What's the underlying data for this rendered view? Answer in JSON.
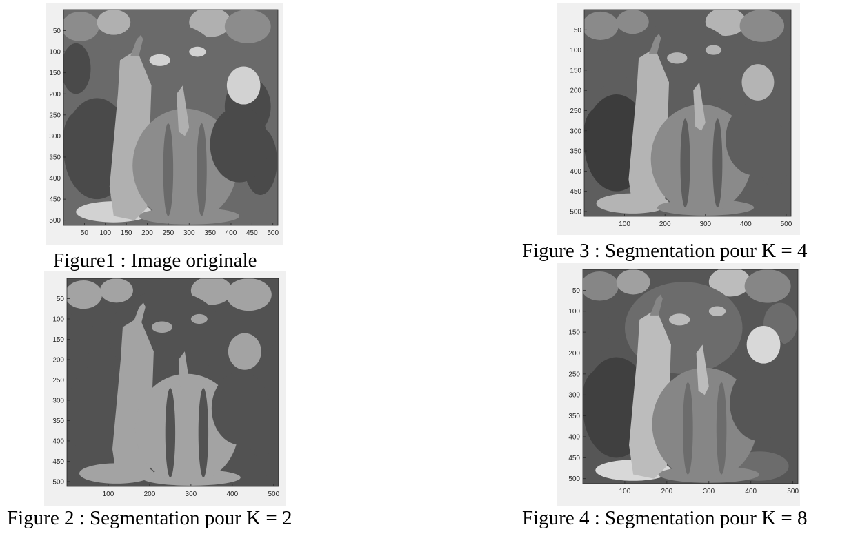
{
  "figures": [
    {
      "id": "fig1",
      "caption": "Figure1 : Image originale",
      "image": "original grayscale peppers image",
      "x_ticks": [
        "50",
        "100",
        "150",
        "200",
        "250",
        "300",
        "350",
        "400",
        "450",
        "500"
      ],
      "y_ticks": [
        "50",
        "100",
        "150",
        "200",
        "250",
        "300",
        "350",
        "400",
        "450",
        "500"
      ]
    },
    {
      "id": "fig2",
      "caption": "Figure 2 : Segmentation pour K = 2",
      "image": "peppers image segmented into 2 gray levels",
      "x_ticks": [
        "100",
        "200",
        "300",
        "400",
        "500"
      ],
      "y_ticks": [
        "50",
        "100",
        "150",
        "200",
        "250",
        "300",
        "350",
        "400",
        "450",
        "500"
      ]
    },
    {
      "id": "fig3",
      "caption": "Figure 3 : Segmentation pour K = 4",
      "image": "peppers image segmented into 4 gray levels",
      "x_ticks": [
        "100",
        "200",
        "300",
        "400",
        "500"
      ],
      "y_ticks": [
        "50",
        "100",
        "150",
        "200",
        "250",
        "300",
        "350",
        "400",
        "450",
        "500"
      ]
    },
    {
      "id": "fig4",
      "caption": "Figure 4 : Segmentation pour K = 8",
      "image": "peppers image segmented into 8 gray levels",
      "x_ticks": [
        "100",
        "200",
        "300",
        "400",
        "500"
      ],
      "y_ticks": [
        "50",
        "100",
        "150",
        "200",
        "250",
        "300",
        "350",
        "400",
        "450",
        "500"
      ]
    }
  ],
  "colors": {
    "panel_bg": "#f0f0f0",
    "axis": "#262626",
    "original_palette": [
      "#2e2e2e",
      "#4a4a4a",
      "#6a6a6a",
      "#8c8c8c",
      "#b0b0b0",
      "#d2d2d2"
    ],
    "k2_palette": [
      "#525252",
      "#a3a3a3"
    ],
    "k4_palette": [
      "#3c3c3c",
      "#5e5e5e",
      "#8a8a8a",
      "#b4b4b4"
    ],
    "k8_palette": [
      "#2a2a2a",
      "#404040",
      "#565656",
      "#6c6c6c",
      "#868686",
      "#a0a0a0",
      "#bcbcbc",
      "#d8d8d8"
    ]
  }
}
